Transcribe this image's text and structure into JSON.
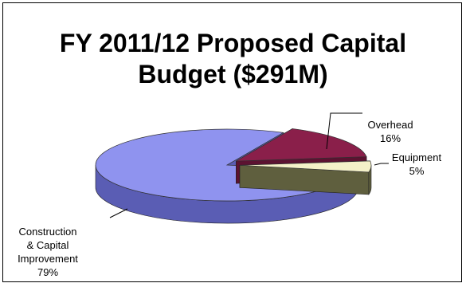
{
  "chart_data": {
    "type": "pie",
    "title": "FY 2011/12 Proposed Capital Budget ($291M)",
    "title_lines": [
      "FY 2011/12 Proposed Capital",
      "Budget  ($291M)"
    ],
    "slices": [
      {
        "label_lines": [
          "Construction",
          "& Capital",
          "Improvement"
        ],
        "label": "Construction & Capital Improvement",
        "percent_text": "79%",
        "value": 79,
        "exploded": false,
        "color_top": "#8f93ef",
        "color_side": "#5a5db4"
      },
      {
        "label_lines": [
          "Overhead"
        ],
        "label": "Overhead",
        "percent_text": "16%",
        "value": 16,
        "exploded": true,
        "color_top": "#8a1f4a",
        "color_side": "#5c1231"
      },
      {
        "label_lines": [
          "Equipment"
        ],
        "label": "Equipment",
        "percent_text": "5%",
        "value": 5,
        "exploded": true,
        "color_top": "#f4f1c8",
        "color_side": "#5f5f3e"
      }
    ],
    "style": "3d-exploded",
    "legend": "none"
  }
}
